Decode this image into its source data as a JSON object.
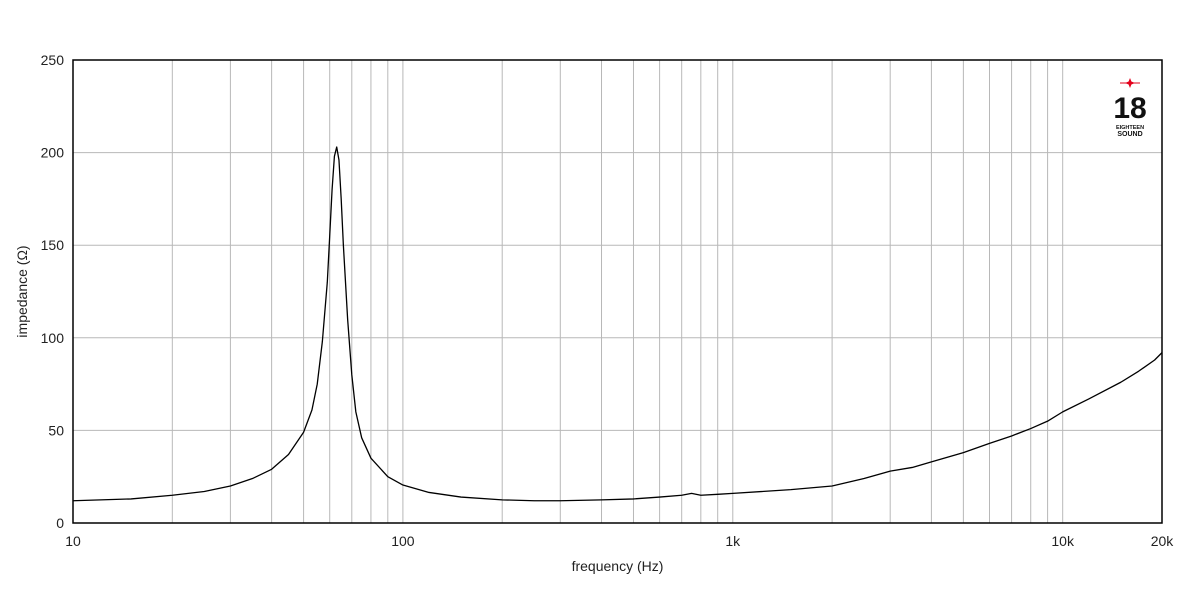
{
  "chart_data": {
    "type": "line",
    "title": "",
    "xlabel": "frequency (Hz)",
    "ylabel": "impedance (Ω)",
    "x_scale": "log",
    "xlim": [
      10,
      20000
    ],
    "ylim": [
      0,
      250
    ],
    "grid": true,
    "x_ticks": [
      {
        "value": 10,
        "label": "10"
      },
      {
        "value": 100,
        "label": "100"
      },
      {
        "value": 1000,
        "label": "1k"
      },
      {
        "value": 10000,
        "label": "10k"
      },
      {
        "value": 20000,
        "label": "20k"
      }
    ],
    "y_ticks": [
      {
        "value": 0,
        "label": "0"
      },
      {
        "value": 50,
        "label": "50"
      },
      {
        "value": 100,
        "label": "100"
      },
      {
        "value": 150,
        "label": "150"
      },
      {
        "value": 200,
        "label": "200"
      },
      {
        "value": 250,
        "label": "250"
      }
    ],
    "series": [
      {
        "color": "#000000",
        "x": [
          10,
          15,
          20,
          25,
          30,
          35,
          40,
          45,
          50,
          53,
          55,
          57,
          59,
          60,
          61,
          62,
          63,
          64,
          65,
          66,
          68,
          70,
          72,
          75,
          80,
          90,
          100,
          120,
          150,
          200,
          250,
          300,
          400,
          500,
          600,
          700,
          750,
          800,
          900,
          1000,
          1500,
          2000,
          2500,
          3000,
          3500,
          4000,
          5000,
          6000,
          7000,
          8000,
          9000,
          10000,
          12000,
          15000,
          17000,
          19000,
          20000
        ],
        "y": [
          12,
          13,
          15,
          17,
          20,
          24,
          29,
          37,
          49,
          61,
          75,
          98,
          130,
          155,
          180,
          198,
          203,
          196,
          175,
          150,
          110,
          80,
          60,
          46,
          35,
          25,
          20.5,
          16.5,
          14,
          12.5,
          12,
          12,
          12.5,
          13,
          14,
          15,
          16,
          15,
          15.5,
          16,
          18,
          20,
          24,
          28,
          30,
          33,
          38,
          43,
          47,
          51,
          55,
          60,
          67,
          76,
          82,
          88,
          92
        ]
      }
    ]
  },
  "logo": {
    "number": "18",
    "line1": "EIGHTEEN",
    "line2": "SOUND"
  }
}
